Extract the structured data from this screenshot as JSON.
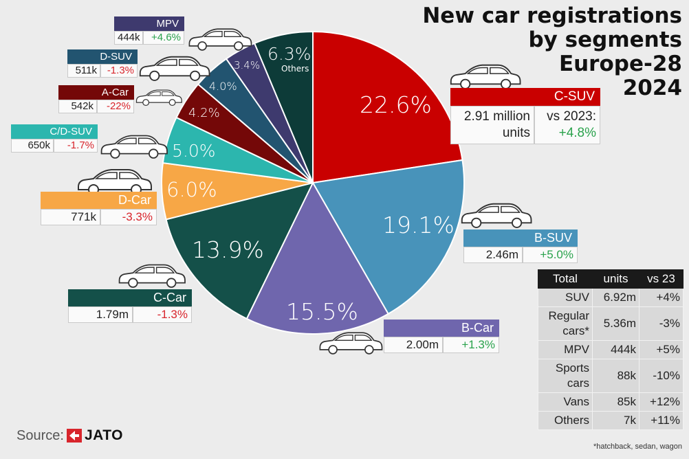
{
  "title_lines": [
    "New car registrations",
    "by segments",
    "Europe-28",
    "2024"
  ],
  "source": {
    "label": "Source:",
    "brand": "JATO"
  },
  "footnote": "*hatchback, sedan, wagon",
  "colors": {
    "C-SUV": "#c90000",
    "B-SUV": "#4893ba",
    "B-Car": "#6f66ad",
    "C-Car": "#145049",
    "D-Car": "#f7a746",
    "C/D-SUV": "#2cb6ae",
    "A-Car": "#740808",
    "D-SUV": "#225470",
    "MPV": "#3e3a6e",
    "Others": "#0d3b38"
  },
  "chart_data": {
    "type": "pie",
    "slices": [
      {
        "name": "C-SUV",
        "pct_label": "22.6%",
        "value": 22.6,
        "units": "2.91 million units",
        "units_a": "2.91 million",
        "units_b": "units",
        "change_label": "vs 2023:",
        "change": "+4.8%"
      },
      {
        "name": "B-SUV",
        "pct_label": "19.1%",
        "value": 19.1,
        "units": "2.46m",
        "change": "+5.0%"
      },
      {
        "name": "B-Car",
        "pct_label": "15.5%",
        "value": 15.5,
        "units": "2.00m",
        "change": "+1.3%"
      },
      {
        "name": "C-Car",
        "pct_label": "13.9%",
        "value": 13.9,
        "units": "1.79m",
        "change": "-1.3%"
      },
      {
        "name": "D-Car",
        "pct_label": "6.0%",
        "value": 6.0,
        "units": "771k",
        "change": "-3.3%"
      },
      {
        "name": "C/D-SUV",
        "pct_label": "5.0%",
        "value": 5.0,
        "units": "650k",
        "change": "-1.7%"
      },
      {
        "name": "A-Car",
        "pct_label": "4.2%",
        "value": 4.2,
        "units": "542k",
        "change": "-22%"
      },
      {
        "name": "D-SUV",
        "pct_label": "4.0%",
        "value": 4.0,
        "units": "511k",
        "change": "-1.3%"
      },
      {
        "name": "MPV",
        "pct_label": "3.4%",
        "value": 3.4,
        "units": "444k",
        "change": "+4.6%"
      },
      {
        "name": "Others",
        "pct_label": "6.3%",
        "value": 6.3
      }
    ],
    "totals_table": {
      "headers": [
        "Total",
        "units",
        "vs 23"
      ],
      "rows": [
        [
          "SUV",
          "6.92m",
          "+4%"
        ],
        [
          "Regular cars*",
          "5.36m",
          "-3%"
        ],
        [
          "MPV",
          "444k",
          "+5%"
        ],
        [
          "Sports cars",
          "88k",
          "-10%"
        ],
        [
          "Vans",
          "85k",
          "+12%"
        ],
        [
          "Others",
          "7k",
          "+11%"
        ]
      ]
    }
  }
}
